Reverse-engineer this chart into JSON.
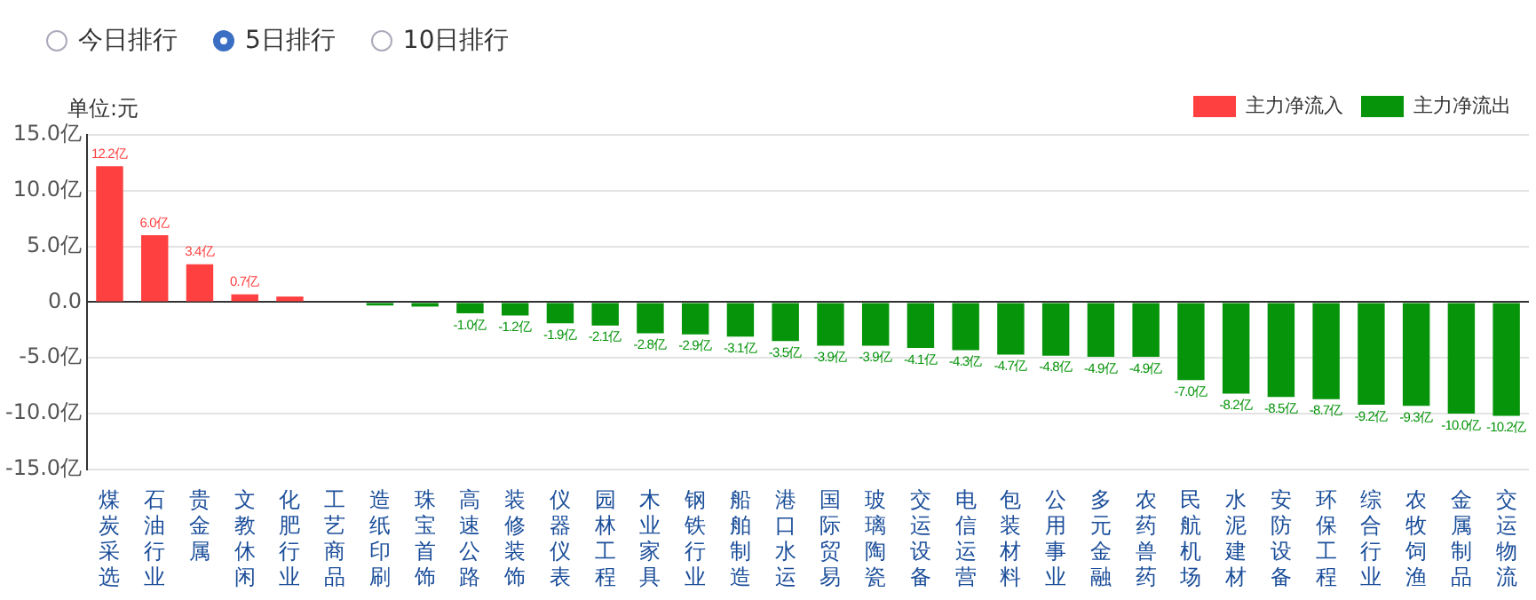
{
  "chart_data": {
    "type": "bar",
    "stacked": true,
    "ylabel": "单位:元",
    "annotations": [
      "今日排行",
      "5日排行",
      "10日排行"
    ],
    "categories": [
      "煤炭采选",
      "石油行业",
      "贵金属",
      "文教休闲",
      "化肥行业",
      "工艺商品",
      "造纸印刷",
      "珠宝首饰",
      "高速公路",
      "装修装饰",
      "仪器仪表",
      "园林工程",
      "木业家具",
      "钢铁行业",
      "船舶制造",
      "港口水运",
      "国际贸易",
      "玻璃陶瓷",
      "交运设备",
      "电信运营",
      "包装材料",
      "公用事业",
      "多元金融",
      "农药兽药",
      "民航机场",
      "水泥建材",
      "安防设备",
      "环保工程",
      "综合行业",
      "农牧饲渔",
      "金属制品",
      "交运物流"
    ],
    "series": [
      {
        "name": "主力净流入",
        "color": "#ff4040",
        "values": [
          12.2,
          6.0,
          3.4,
          0.7,
          0.5,
          null,
          null,
          null,
          null,
          null,
          null,
          null,
          null,
          null,
          null,
          null,
          null,
          null,
          null,
          null,
          null,
          null,
          null,
          null,
          null,
          null,
          null,
          null,
          null,
          null,
          null,
          null
        ],
        "value_labels": [
          "12.2亿",
          "6.0亿",
          "3.4亿",
          "0.7亿",
          null,
          null,
          null,
          null,
          null,
          null,
          null,
          null,
          null,
          null,
          null,
          null,
          null,
          null,
          null,
          null,
          null,
          null,
          null,
          null,
          null,
          null,
          null,
          null,
          null,
          null,
          null,
          null
        ]
      },
      {
        "name": "主力净流出",
        "color": "#06940a",
        "values": [
          null,
          null,
          null,
          null,
          null,
          null,
          -0.3,
          -0.4,
          -1.0,
          -1.2,
          -1.9,
          -2.1,
          -2.8,
          -2.9,
          -3.1,
          -3.5,
          -3.9,
          -3.9,
          -4.1,
          -4.3,
          -4.7,
          -4.8,
          -4.9,
          -4.9,
          -7.0,
          -8.2,
          -8.5,
          -8.7,
          -9.2,
          -9.3,
          -10.0,
          -10.2
        ],
        "value_labels": [
          null,
          null,
          null,
          null,
          null,
          null,
          null,
          null,
          "-1.0亿",
          "-1.2亿",
          "-1.9亿",
          "-2.1亿",
          "-2.8亿",
          "-2.9亿",
          "-3.1亿",
          "-3.5亿",
          "-3.9亿",
          "-3.9亿",
          "-4.1亿",
          "-4.3亿",
          "-4.7亿",
          "-4.8亿",
          "-4.9亿",
          "-4.9亿",
          "-7.0亿",
          "-8.2亿",
          "-8.5亿",
          "-8.7亿",
          "-9.2亿",
          "-9.3亿",
          "-10.0亿",
          "-10.2亿"
        ]
      }
    ],
    "ylim": [
      -15,
      15
    ],
    "yticks": [
      {
        "value": 15,
        "label": "15.0亿"
      },
      {
        "value": 10,
        "label": "10.0亿"
      },
      {
        "value": 5,
        "label": "5.0亿"
      },
      {
        "value": 0,
        "label": "0.0"
      },
      {
        "value": -5,
        "label": "-5.0亿"
      },
      {
        "value": -10,
        "label": "-10.0亿"
      },
      {
        "value": -15,
        "label": "-15.0亿"
      }
    ],
    "grid": "y",
    "legend": "top right"
  }
}
